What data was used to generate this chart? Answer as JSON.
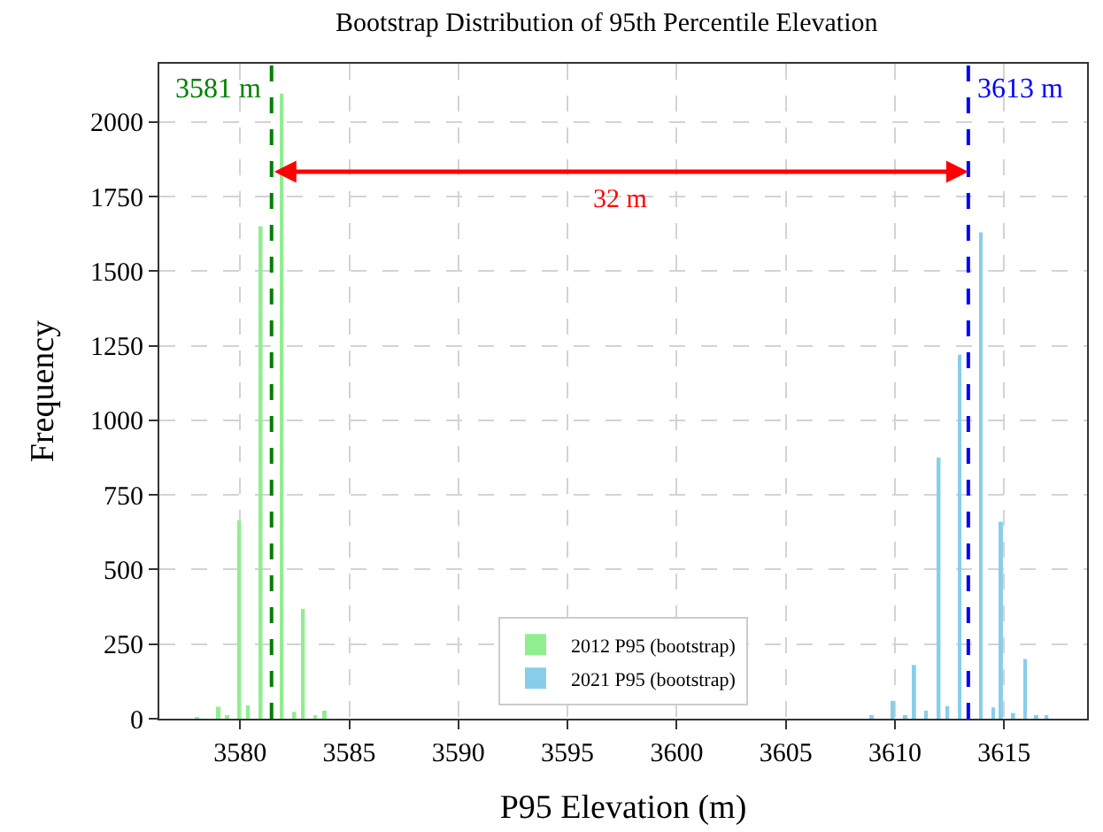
{
  "chart_data": {
    "type": "bar",
    "title": "Bootstrap Distribution of 95th Percentile Elevation",
    "xlabel": "P95 Elevation (m)",
    "ylabel": "Frequency",
    "series": [
      {
        "name": "2012 P95 (bootstrap)",
        "color": "#90ee90",
        "x": [
          3578.06,
          3579.04,
          3579.44,
          3579.98,
          3580.38,
          3580.96,
          3581.44,
          3581.92,
          3582.5,
          3582.9,
          3583.44,
          3583.9
        ],
        "values": [
          5,
          40,
          8,
          665,
          45,
          1650,
          null,
          2095,
          23,
          368,
          8,
          27
        ]
      },
      {
        "name": "2021 P95 (bootstrap)",
        "color": "#87ceeb",
        "x": [
          3608.96,
          3609.92,
          3610.5,
          3610.9,
          3611.44,
          3612.02,
          3612.42,
          3612.96,
          3613.42,
          3613.92,
          3614.5,
          3614.88,
          3615.44,
          3615.98,
          3616.5,
          3616.96
        ],
        "values": [
          8,
          60,
          8,
          180,
          27,
          875,
          42,
          1220,
          null,
          1630,
          38,
          660,
          19,
          200,
          8,
          11
        ]
      }
    ],
    "ref_lines": [
      {
        "axis": "x",
        "value": 3581.44,
        "label": "3581 m",
        "color": "#008000",
        "line_style": "dashed"
      },
      {
        "axis": "x",
        "value": 3613.36,
        "label": "3613 m",
        "color": "#0000ff",
        "line_style": "dashed"
      }
    ],
    "annotations": [
      "32 m"
    ],
    "xlim": [
      3576.3,
      3618.8
    ],
    "xticks": [
      3580,
      3585,
      3590,
      3595,
      3600,
      3605,
      3610,
      3615
    ],
    "ylim": [
      0,
      2195
    ],
    "yticks": [
      0,
      250,
      500,
      750,
      1000,
      1250,
      1500,
      1750,
      2000
    ],
    "grid": true,
    "legend": "bottom"
  }
}
